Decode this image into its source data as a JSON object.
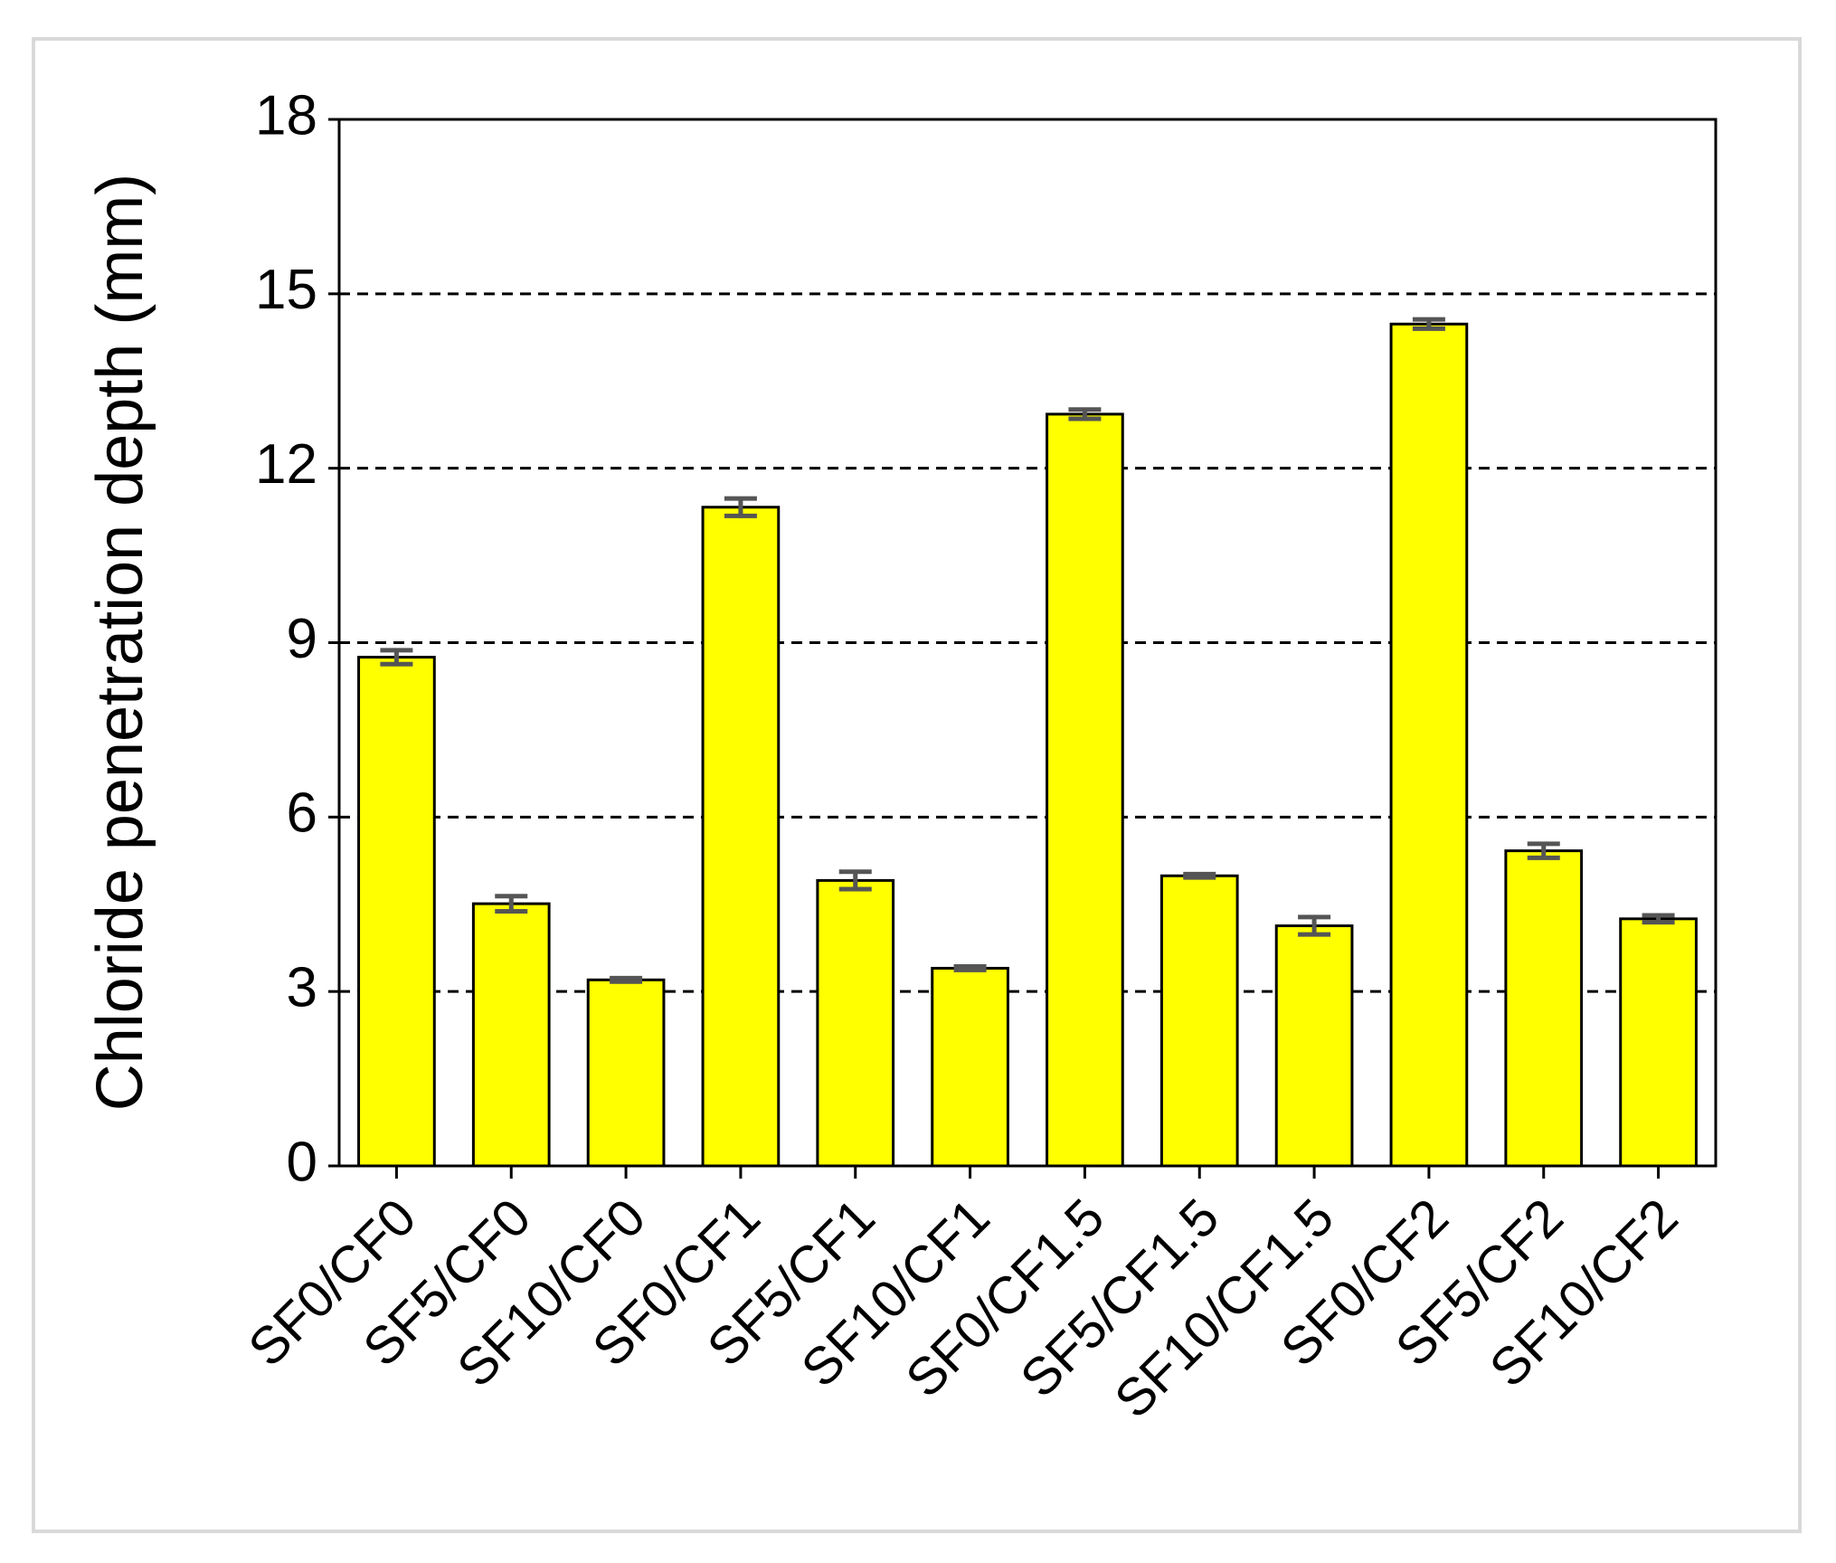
{
  "chart_data": {
    "type": "bar",
    "y_label": "Chloride penetration depth (mm)",
    "categories": [
      "SF0/CF0",
      "SF5/CF0",
      "SF10/CF0",
      "SF0/CF1",
      "SF5/CF1",
      "SF10/CF1",
      "SF0/CF1.5",
      "SF5/CF1.5",
      "SF10/CF1.5",
      "SF0/CF2",
      "SF5/CF2",
      "SF10/CF2"
    ],
    "values": [
      8.75,
      4.51,
      3.2,
      11.33,
      4.91,
      3.4,
      12.93,
      4.99,
      4.13,
      14.48,
      5.42,
      4.25
    ],
    "errors": [
      0.12,
      0.13,
      0.03,
      0.15,
      0.15,
      0.03,
      0.08,
      0.03,
      0.15,
      0.08,
      0.12,
      0.06
    ],
    "color": "#ffff00",
    "error_color": "#555555",
    "ylim": [
      0,
      18
    ],
    "yticks": [
      0,
      3,
      6,
      9,
      12,
      15,
      18
    ],
    "grid": true
  }
}
